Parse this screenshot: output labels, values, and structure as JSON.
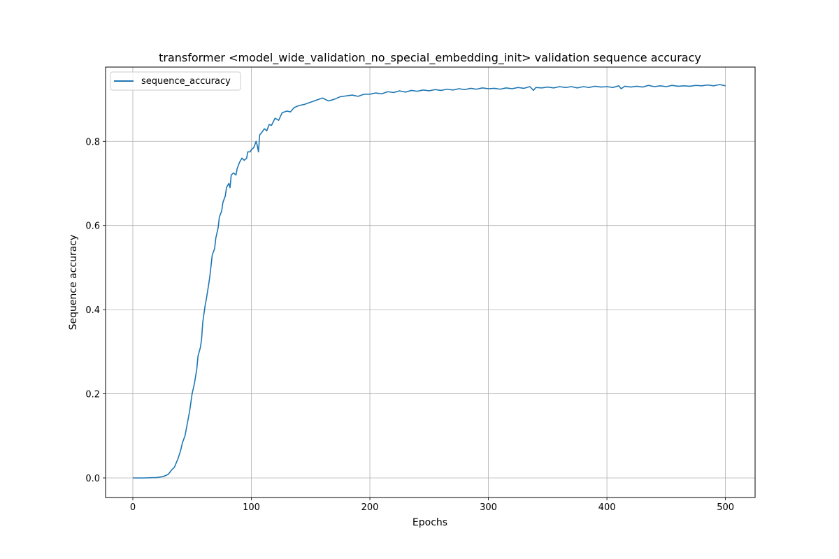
{
  "chart_data": {
    "type": "line",
    "title": "transformer <model_wide_validation_no_special_embedding_init> validation sequence accuracy",
    "xlabel": "Epochs",
    "ylabel": "Sequence accuracy",
    "xlim": [
      -23,
      525
    ],
    "ylim": [
      -0.0465,
      0.9765
    ],
    "x_ticks": [
      0,
      100,
      200,
      300,
      400,
      500
    ],
    "y_ticks": [
      0.0,
      0.2,
      0.4,
      0.6,
      0.8
    ],
    "x_tick_labels": [
      "0",
      "100",
      "200",
      "300",
      "400",
      "500"
    ],
    "y_tick_labels": [
      "0.0",
      "0.2",
      "0.4",
      "0.6",
      "0.8"
    ],
    "grid": true,
    "legend_position": "upper-left",
    "series": [
      {
        "name": "sequence_accuracy",
        "color": "#1f77b4",
        "points": [
          [
            0,
            0.0
          ],
          [
            5,
            0.0
          ],
          [
            10,
            0.0
          ],
          [
            15,
            0.0005
          ],
          [
            20,
            0.001
          ],
          [
            25,
            0.003
          ],
          [
            28,
            0.006
          ],
          [
            30,
            0.009
          ],
          [
            33,
            0.02
          ],
          [
            35,
            0.025
          ],
          [
            38,
            0.045
          ],
          [
            40,
            0.062
          ],
          [
            42,
            0.085
          ],
          [
            44,
            0.1
          ],
          [
            46,
            0.13
          ],
          [
            48,
            0.16
          ],
          [
            50,
            0.2
          ],
          [
            52,
            0.225
          ],
          [
            54,
            0.26
          ],
          [
            55,
            0.29
          ],
          [
            57,
            0.31
          ],
          [
            58,
            0.33
          ],
          [
            59,
            0.37
          ],
          [
            61,
            0.41
          ],
          [
            62,
            0.425
          ],
          [
            64,
            0.46
          ],
          [
            65,
            0.48
          ],
          [
            66,
            0.505
          ],
          [
            67,
            0.53
          ],
          [
            69,
            0.545
          ],
          [
            70,
            0.57
          ],
          [
            72,
            0.595
          ],
          [
            73,
            0.62
          ],
          [
            75,
            0.635
          ],
          [
            76,
            0.655
          ],
          [
            78,
            0.67
          ],
          [
            79,
            0.69
          ],
          [
            81,
            0.7
          ],
          [
            82,
            0.69
          ],
          [
            83,
            0.72
          ],
          [
            85,
            0.725
          ],
          [
            87,
            0.72
          ],
          [
            88,
            0.735
          ],
          [
            90,
            0.75
          ],
          [
            92,
            0.76
          ],
          [
            94,
            0.755
          ],
          [
            96,
            0.76
          ],
          [
            97,
            0.775
          ],
          [
            99,
            0.775
          ],
          [
            100,
            0.78
          ],
          [
            102,
            0.785
          ],
          [
            104,
            0.8
          ],
          [
            105,
            0.79
          ],
          [
            106,
            0.775
          ],
          [
            107,
            0.815
          ],
          [
            109,
            0.822
          ],
          [
            111,
            0.83
          ],
          [
            113,
            0.825
          ],
          [
            115,
            0.84
          ],
          [
            117,
            0.838
          ],
          [
            120,
            0.855
          ],
          [
            123,
            0.85
          ],
          [
            126,
            0.868
          ],
          [
            130,
            0.872
          ],
          [
            133,
            0.87
          ],
          [
            136,
            0.88
          ],
          [
            140,
            0.885
          ],
          [
            145,
            0.888
          ],
          [
            150,
            0.893
          ],
          [
            155,
            0.898
          ],
          [
            160,
            0.903
          ],
          [
            165,
            0.896
          ],
          [
            170,
            0.9
          ],
          [
            175,
            0.906
          ],
          [
            180,
            0.908
          ],
          [
            185,
            0.91
          ],
          [
            190,
            0.907
          ],
          [
            195,
            0.912
          ],
          [
            200,
            0.912
          ],
          [
            205,
            0.915
          ],
          [
            210,
            0.913
          ],
          [
            215,
            0.918
          ],
          [
            220,
            0.916
          ],
          [
            225,
            0.92
          ],
          [
            230,
            0.917
          ],
          [
            235,
            0.921
          ],
          [
            240,
            0.919
          ],
          [
            245,
            0.922
          ],
          [
            250,
            0.92
          ],
          [
            255,
            0.923
          ],
          [
            260,
            0.921
          ],
          [
            265,
            0.924
          ],
          [
            270,
            0.922
          ],
          [
            275,
            0.925
          ],
          [
            280,
            0.923
          ],
          [
            285,
            0.926
          ],
          [
            290,
            0.924
          ],
          [
            295,
            0.927
          ],
          [
            300,
            0.925
          ],
          [
            305,
            0.926
          ],
          [
            310,
            0.924
          ],
          [
            315,
            0.927
          ],
          [
            320,
            0.925
          ],
          [
            325,
            0.928
          ],
          [
            330,
            0.926
          ],
          [
            335,
            0.93
          ],
          [
            338,
            0.921
          ],
          [
            340,
            0.928
          ],
          [
            345,
            0.927
          ],
          [
            350,
            0.929
          ],
          [
            355,
            0.927
          ],
          [
            360,
            0.93
          ],
          [
            365,
            0.928
          ],
          [
            370,
            0.93
          ],
          [
            375,
            0.927
          ],
          [
            380,
            0.93
          ],
          [
            385,
            0.928
          ],
          [
            390,
            0.931
          ],
          [
            395,
            0.929
          ],
          [
            400,
            0.93
          ],
          [
            405,
            0.928
          ],
          [
            410,
            0.932
          ],
          [
            412,
            0.925
          ],
          [
            415,
            0.931
          ],
          [
            420,
            0.929
          ],
          [
            425,
            0.931
          ],
          [
            430,
            0.929
          ],
          [
            435,
            0.933
          ],
          [
            440,
            0.93
          ],
          [
            445,
            0.932
          ],
          [
            450,
            0.93
          ],
          [
            455,
            0.933
          ],
          [
            460,
            0.931
          ],
          [
            465,
            0.932
          ],
          [
            470,
            0.931
          ],
          [
            475,
            0.933
          ],
          [
            480,
            0.932
          ],
          [
            485,
            0.934
          ],
          [
            490,
            0.932
          ],
          [
            495,
            0.935
          ],
          [
            500,
            0.932
          ]
        ]
      }
    ]
  }
}
